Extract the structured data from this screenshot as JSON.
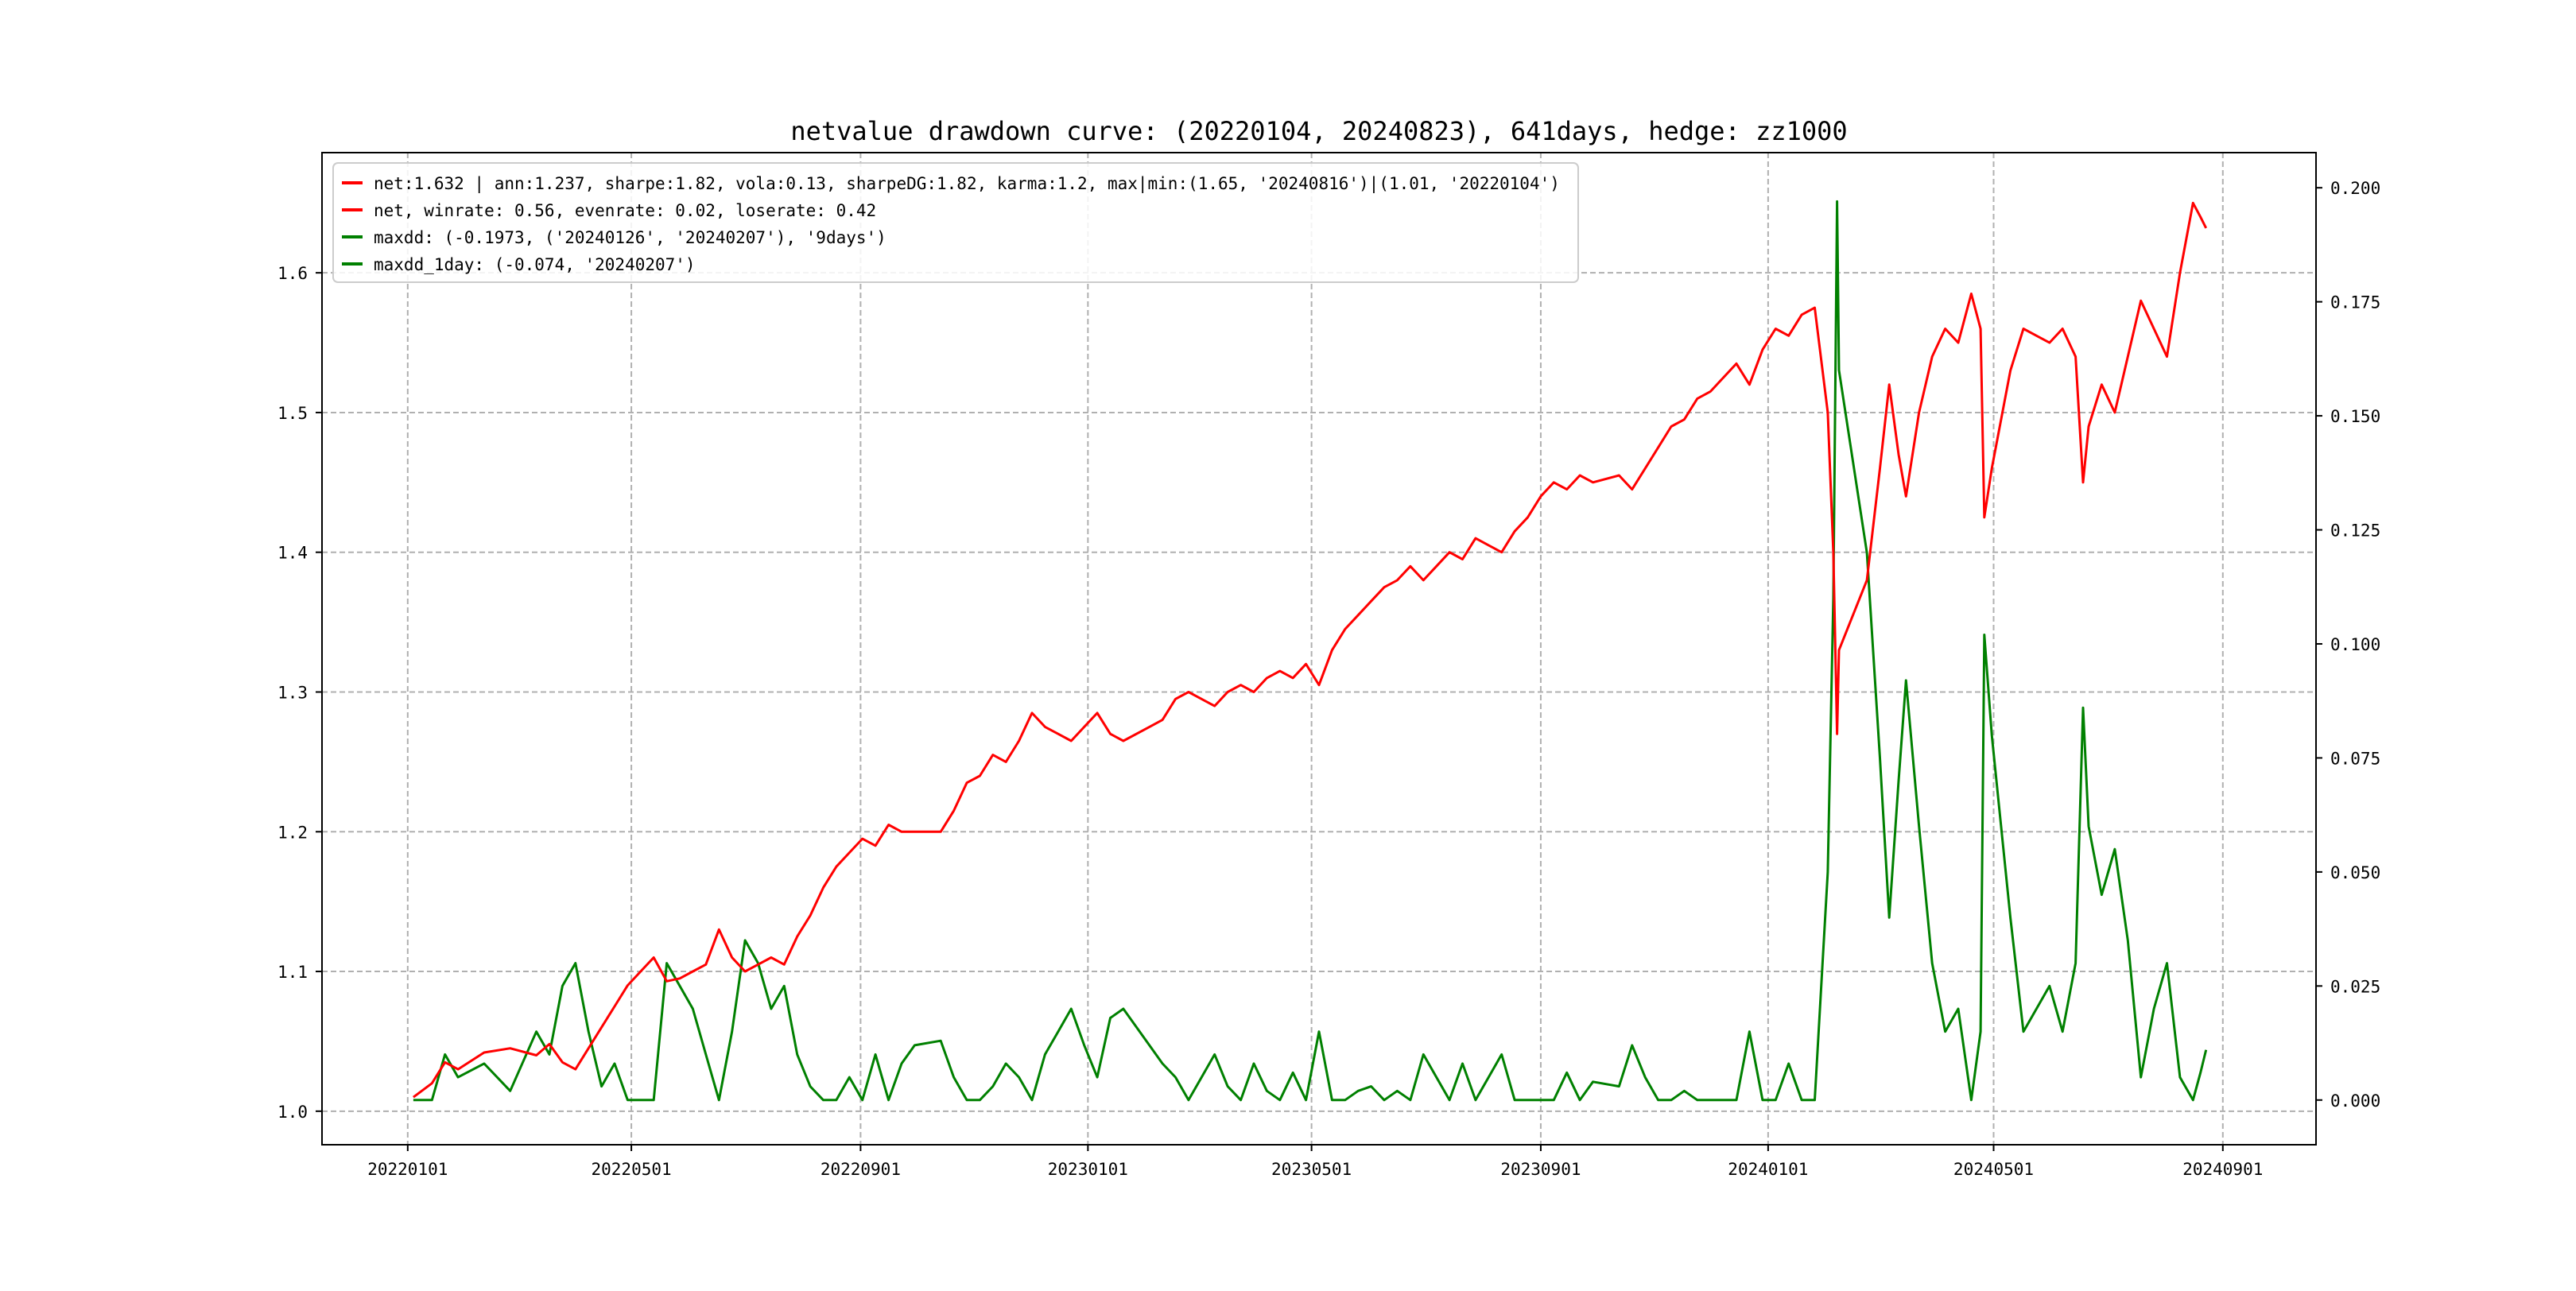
{
  "chart_data": {
    "type": "line",
    "title": "netvalue drawdown curve: (20220104, 20240823), 641days, hedge: zz1000",
    "xlabel": "",
    "ylabel_left": "",
    "ylabel_right": "",
    "grid": true,
    "legend_placement": "top-left",
    "x_ticks": [
      "20220101",
      "20220501",
      "20220901",
      "20230101",
      "20230501",
      "20230901",
      "20240101",
      "20240501",
      "20240901"
    ],
    "y_left_ticks": [
      "1.0",
      "1.1",
      "1.2",
      "1.3",
      "1.4",
      "1.5",
      "1.6"
    ],
    "y_right_ticks": [
      "0.000",
      "0.025",
      "0.050",
      "0.075",
      "0.100",
      "0.125",
      "0.150",
      "0.175",
      "0.200"
    ],
    "ylim_left": [
      0.976,
      1.686
    ],
    "ylim_right": [
      -0.0098,
      0.2077
    ],
    "xlim_dates": [
      "20211116",
      "20241021"
    ],
    "legend": [
      {
        "label": "net:1.632 | ann:1.237, sharpe:1.82, vola:0.13, sharpeDG:1.82, karma:1.2, max|min:(1.65, '20240816')|(1.01, '20220104')",
        "color": "#ff0000"
      },
      {
        "label": "net, winrate: 0.56, evenrate: 0.02, loserate: 0.42",
        "color": "#ff0000"
      },
      {
        "label": "maxdd: (-0.1973, ('20240126', '20240207'), '9days')",
        "color": "#008000"
      },
      {
        "label": "maxdd_1day: (-0.074, '20240207')",
        "color": "#008000"
      }
    ],
    "series": [
      {
        "name": "net",
        "axis": "left",
        "color": "#ff0000"
      },
      {
        "name": "drawdown",
        "axis": "right",
        "color": "#008000"
      }
    ],
    "points": [
      [
        "20220104",
        1.01,
        0.0
      ],
      [
        "20220114",
        1.02,
        0.0
      ],
      [
        "20220121",
        1.035,
        0.01
      ],
      [
        "20220128",
        1.03,
        0.005
      ],
      [
        "20220211",
        1.042,
        0.008
      ],
      [
        "20220225",
        1.045,
        0.002
      ],
      [
        "20220311",
        1.04,
        0.015
      ],
      [
        "20220318",
        1.048,
        0.01
      ],
      [
        "20220325",
        1.035,
        0.025
      ],
      [
        "20220401",
        1.03,
        0.03
      ],
      [
        "20220408",
        1.045,
        0.015
      ],
      [
        "20220415",
        1.06,
        0.003
      ],
      [
        "20220422",
        1.075,
        0.008
      ],
      [
        "20220429",
        1.09,
        0.0
      ],
      [
        "20220506",
        1.1,
        0.0
      ],
      [
        "20220513",
        1.11,
        0.0
      ],
      [
        "20220520",
        1.093,
        0.03
      ],
      [
        "20220527",
        1.095,
        0.025
      ],
      [
        "20220603",
        1.1,
        0.02
      ],
      [
        "20220610",
        1.105,
        0.01
      ],
      [
        "20220617",
        1.13,
        0.0
      ],
      [
        "20220624",
        1.11,
        0.015
      ],
      [
        "20220701",
        1.1,
        0.035
      ],
      [
        "20220708",
        1.105,
        0.03
      ],
      [
        "20220715",
        1.11,
        0.02
      ],
      [
        "20220722",
        1.105,
        0.025
      ],
      [
        "20220729",
        1.125,
        0.01
      ],
      [
        "20220805",
        1.14,
        0.003
      ],
      [
        "20220812",
        1.16,
        0.0
      ],
      [
        "20220819",
        1.175,
        0.0
      ],
      [
        "20220826",
        1.185,
        0.005
      ],
      [
        "20220902",
        1.195,
        0.0
      ],
      [
        "20220909",
        1.19,
        0.01
      ],
      [
        "20220916",
        1.205,
        0.0
      ],
      [
        "20220923",
        1.2,
        0.008
      ],
      [
        "20220930",
        1.2,
        0.012
      ],
      [
        "20221014",
        1.2,
        0.013
      ],
      [
        "20221021",
        1.215,
        0.005
      ],
      [
        "20221028",
        1.235,
        0.0
      ],
      [
        "20221104",
        1.24,
        0.0
      ],
      [
        "20221111",
        1.255,
        0.003
      ],
      [
        "20221118",
        1.25,
        0.008
      ],
      [
        "20221125",
        1.265,
        0.005
      ],
      [
        "20221202",
        1.285,
        0.0
      ],
      [
        "20221209",
        1.275,
        0.01
      ],
      [
        "20221216",
        1.27,
        0.015
      ],
      [
        "20221223",
        1.265,
        0.02
      ],
      [
        "20221230",
        1.275,
        0.012
      ],
      [
        "20230106",
        1.285,
        0.005
      ],
      [
        "20230113",
        1.27,
        0.018
      ],
      [
        "20230120",
        1.265,
        0.02
      ],
      [
        "20230203",
        1.275,
        0.012
      ],
      [
        "20230210",
        1.28,
        0.008
      ],
      [
        "20230217",
        1.295,
        0.005
      ],
      [
        "20230224",
        1.3,
        0.0
      ],
      [
        "20230303",
        1.295,
        0.005
      ],
      [
        "20230310",
        1.29,
        0.01
      ],
      [
        "20230317",
        1.3,
        0.003
      ],
      [
        "20230324",
        1.305,
        0.0
      ],
      [
        "20230331",
        1.3,
        0.008
      ],
      [
        "20230407",
        1.31,
        0.002
      ],
      [
        "20230414",
        1.315,
        0.0
      ],
      [
        "20230421",
        1.31,
        0.006
      ],
      [
        "20230428",
        1.32,
        0.0
      ],
      [
        "20230505",
        1.305,
        0.015
      ],
      [
        "20230512",
        1.33,
        0.0
      ],
      [
        "20230519",
        1.345,
        0.0
      ],
      [
        "20230526",
        1.355,
        0.002
      ],
      [
        "20230602",
        1.365,
        0.003
      ],
      [
        "20230609",
        1.375,
        0.0
      ],
      [
        "20230616",
        1.38,
        0.002
      ],
      [
        "20230623",
        1.39,
        0.0
      ],
      [
        "20230630",
        1.38,
        0.01
      ],
      [
        "20230707",
        1.39,
        0.005
      ],
      [
        "20230714",
        1.4,
        0.0
      ],
      [
        "20230721",
        1.395,
        0.008
      ],
      [
        "20230728",
        1.41,
        0.0
      ],
      [
        "20230804",
        1.405,
        0.005
      ],
      [
        "20230811",
        1.4,
        0.01
      ],
      [
        "20230818",
        1.415,
        0.0
      ],
      [
        "20230825",
        1.425,
        0.0
      ],
      [
        "20230901",
        1.44,
        0.0
      ],
      [
        "20230908",
        1.45,
        0.0
      ],
      [
        "20230915",
        1.445,
        0.006
      ],
      [
        "20230922",
        1.455,
        0.0
      ],
      [
        "20230929",
        1.45,
        0.004
      ],
      [
        "20231013",
        1.455,
        0.003
      ],
      [
        "20231020",
        1.445,
        0.012
      ],
      [
        "20231027",
        1.46,
        0.005
      ],
      [
        "20231103",
        1.475,
        0.0
      ],
      [
        "20231110",
        1.49,
        0.0
      ],
      [
        "20231117",
        1.495,
        0.002
      ],
      [
        "20231124",
        1.51,
        0.0
      ],
      [
        "20231201",
        1.515,
        0.0
      ],
      [
        "20231208",
        1.525,
        0.0
      ],
      [
        "20231215",
        1.535,
        0.0
      ],
      [
        "20231222",
        1.52,
        0.015
      ],
      [
        "20231229",
        1.545,
        0.0
      ],
      [
        "20240105",
        1.56,
        0.0
      ],
      [
        "20240112",
        1.555,
        0.008
      ],
      [
        "20240119",
        1.57,
        0.0
      ],
      [
        "20240126",
        1.575,
        0.0
      ],
      [
        "20240202",
        1.5,
        0.05
      ],
      [
        "20240205",
        1.4,
        0.11
      ],
      [
        "20240207",
        1.27,
        0.197
      ],
      [
        "20240208",
        1.33,
        0.16
      ],
      [
        "20240223",
        1.38,
        0.12
      ],
      [
        "20240301",
        1.46,
        0.075
      ],
      [
        "20240306",
        1.52,
        0.04
      ],
      [
        "20240311",
        1.47,
        0.07
      ],
      [
        "20240315",
        1.44,
        0.092
      ],
      [
        "20240322",
        1.5,
        0.06
      ],
      [
        "20240329",
        1.54,
        0.03
      ],
      [
        "20240405",
        1.56,
        0.015
      ],
      [
        "20240412",
        1.55,
        0.02
      ],
      [
        "20240419",
        1.585,
        0.0
      ],
      [
        "20240424",
        1.56,
        0.015
      ],
      [
        "20240426",
        1.425,
        0.102
      ],
      [
        "20240430",
        1.46,
        0.08
      ],
      [
        "20240510",
        1.53,
        0.04
      ],
      [
        "20240517",
        1.56,
        0.015
      ],
      [
        "20240524",
        1.555,
        0.02
      ],
      [
        "20240531",
        1.55,
        0.025
      ],
      [
        "20240607",
        1.56,
        0.015
      ],
      [
        "20240614",
        1.54,
        0.03
      ],
      [
        "20240618",
        1.45,
        0.086
      ],
      [
        "20240621",
        1.49,
        0.06
      ],
      [
        "20240628",
        1.52,
        0.045
      ],
      [
        "20240705",
        1.5,
        0.055
      ],
      [
        "20240712",
        1.54,
        0.035
      ],
      [
        "20240719",
        1.58,
        0.005
      ],
      [
        "20240726",
        1.56,
        0.02
      ],
      [
        "20240802",
        1.54,
        0.03
      ],
      [
        "20240809",
        1.6,
        0.005
      ],
      [
        "20240816",
        1.65,
        0.0
      ],
      [
        "20240820",
        1.64,
        0.006
      ],
      [
        "20240823",
        1.632,
        0.011
      ]
    ]
  }
}
